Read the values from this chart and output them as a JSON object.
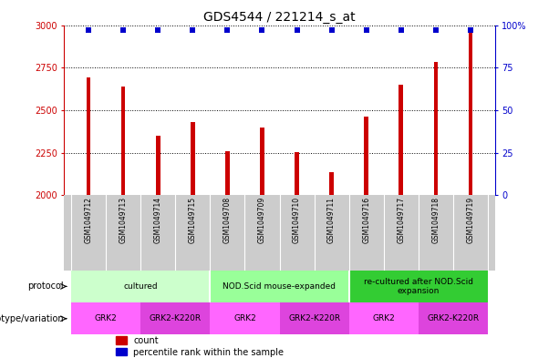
{
  "title": "GDS4544 / 221214_s_at",
  "samples": [
    "GSM1049712",
    "GSM1049713",
    "GSM1049714",
    "GSM1049715",
    "GSM1049708",
    "GSM1049709",
    "GSM1049710",
    "GSM1049711",
    "GSM1049716",
    "GSM1049717",
    "GSM1049718",
    "GSM1049719"
  ],
  "counts": [
    2690,
    2640,
    2350,
    2430,
    2260,
    2400,
    2255,
    2135,
    2460,
    2650,
    2785,
    2970
  ],
  "percentiles": [
    97,
    97,
    97,
    97,
    97,
    97,
    97,
    97,
    97,
    97,
    97,
    97
  ],
  "ylim_left": [
    2000,
    3000
  ],
  "ylim_right": [
    0,
    100
  ],
  "yticks_left": [
    2000,
    2250,
    2500,
    2750,
    3000
  ],
  "yticks_right": [
    0,
    25,
    50,
    75,
    100
  ],
  "ytick_right_labels": [
    "0",
    "25",
    "50",
    "75",
    "100%"
  ],
  "bar_color": "#cc0000",
  "dot_color": "#0000cc",
  "bar_width": 0.12,
  "protocol_groups": [
    {
      "label": "cultured",
      "start": 0,
      "end": 3,
      "color": "#ccffcc"
    },
    {
      "label": "NOD.Scid mouse-expanded",
      "start": 4,
      "end": 7,
      "color": "#99ff99"
    },
    {
      "label": "re-cultured after NOD.Scid\nexpansion",
      "start": 8,
      "end": 11,
      "color": "#33cc33"
    }
  ],
  "genotype_groups": [
    {
      "label": "GRK2",
      "start": 0,
      "end": 1,
      "color": "#ff66ff"
    },
    {
      "label": "GRK2-K220R",
      "start": 2,
      "end": 3,
      "color": "#dd44dd"
    },
    {
      "label": "GRK2",
      "start": 4,
      "end": 5,
      "color": "#ff66ff"
    },
    {
      "label": "GRK2-K220R",
      "start": 6,
      "end": 7,
      "color": "#dd44dd"
    },
    {
      "label": "GRK2",
      "start": 8,
      "end": 9,
      "color": "#ff66ff"
    },
    {
      "label": "GRK2-K220R",
      "start": 10,
      "end": 11,
      "color": "#dd44dd"
    }
  ],
  "sample_bg_color": "#cccccc",
  "sample_divider_color": "#ffffff",
  "title_fontsize": 10,
  "tick_fontsize": 7,
  "sample_fontsize": 5.5,
  "annot_fontsize": 7,
  "group_fontsize": 6.5,
  "legend_fontsize": 7
}
